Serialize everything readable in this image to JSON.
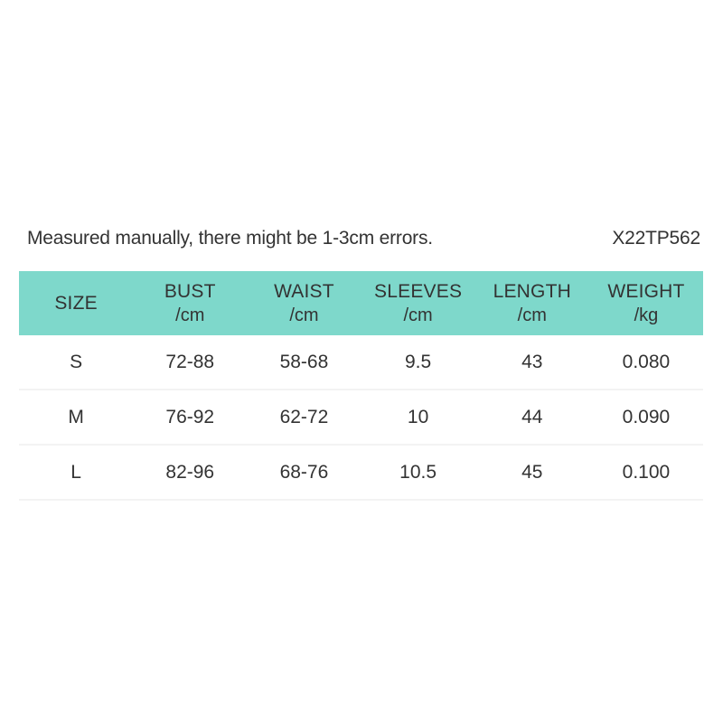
{
  "note": {
    "text": "Measured manually, there might be 1-3cm errors.",
    "code": "X22TP562"
  },
  "table": {
    "columns": [
      {
        "label": "SIZE",
        "unit": ""
      },
      {
        "label": "BUST",
        "unit": "/cm"
      },
      {
        "label": "WAIST",
        "unit": "/cm"
      },
      {
        "label": "SLEEVES",
        "unit": "/cm"
      },
      {
        "label": "LENGTH",
        "unit": "/cm"
      },
      {
        "label": "WEIGHT",
        "unit": "/kg"
      }
    ],
    "rows": [
      {
        "cells": [
          "S",
          "72-88",
          "58-68",
          "9.5",
          "43",
          "0.080"
        ]
      },
      {
        "cells": [
          "M",
          "76-92",
          "62-72",
          "10",
          "44",
          "0.090"
        ]
      },
      {
        "cells": [
          "L",
          "82-96",
          "68-76",
          "10.5",
          "45",
          "0.100"
        ]
      }
    ]
  },
  "colors": {
    "header_bg": "#7ed8cb",
    "text": "#333333",
    "divider": "#f3f3f3",
    "background": "#ffffff"
  },
  "chart_data": {
    "type": "table",
    "title": "Size chart",
    "annotations": [
      "Measured manually, there might be 1-3cm errors.",
      "X22TP562"
    ],
    "columns": [
      "SIZE",
      "BUST /cm",
      "WAIST /cm",
      "SLEEVES /cm",
      "LENGTH /cm",
      "WEIGHT /kg"
    ],
    "rows": [
      [
        "S",
        "72-88",
        "58-68",
        "9.5",
        "43",
        "0.080"
      ],
      [
        "M",
        "76-92",
        "62-72",
        "10",
        "44",
        "0.090"
      ],
      [
        "L",
        "82-96",
        "68-76",
        "10.5",
        "45",
        "0.100"
      ]
    ]
  }
}
